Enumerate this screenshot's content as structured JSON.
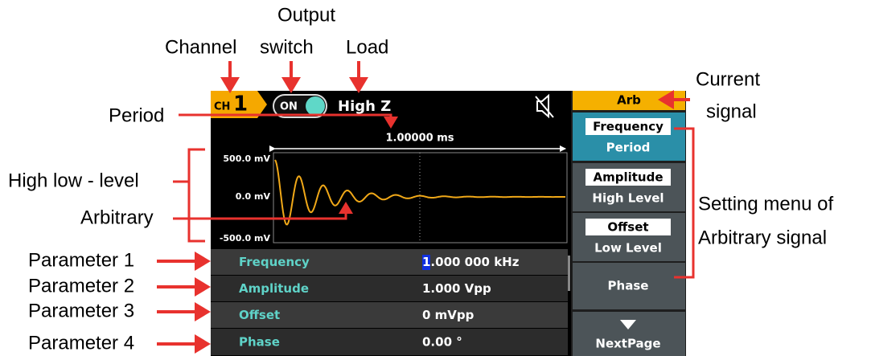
{
  "annotations": {
    "channel": "Channel",
    "output_switch_1": "Output",
    "output_switch_2": "switch",
    "load": "Load",
    "period": "Period",
    "level": "High low - level",
    "arbitrary": "Arbitrary",
    "parameters": [
      "Parameter 1",
      "Parameter 2",
      "Parameter 3",
      "Parameter 4"
    ],
    "current_signal_1": "Current",
    "current_signal_2": "signal",
    "menu_1": "Setting menu of",
    "menu_2": "Arbitrary signal"
  },
  "screen": {
    "channel_prefix": "CH",
    "channel_number": "1",
    "output": "ON",
    "load": "High Z",
    "period": "1.00000 ms",
    "y_labels": [
      "500.0 mV",
      "0.0 mV",
      "-500.0 mV"
    ],
    "parameters": [
      {
        "name": "Frequency",
        "value": "1.000 000 kHz"
      },
      {
        "name": "Amplitude",
        "value": "1.000 Vpp"
      },
      {
        "name": "Offset",
        "value": "0 mVpp"
      },
      {
        "name": "Phase",
        "value": "0.00 °"
      }
    ],
    "menu": {
      "title": "Arb",
      "items": [
        {
          "top": "Frequency",
          "bottom": "Period"
        },
        {
          "top": "Amplitude",
          "bottom": "High Level"
        },
        {
          "top": "Offset",
          "bottom": "Low Level"
        },
        {
          "label": "Phase"
        },
        {
          "label": "NextPage"
        }
      ]
    }
  }
}
